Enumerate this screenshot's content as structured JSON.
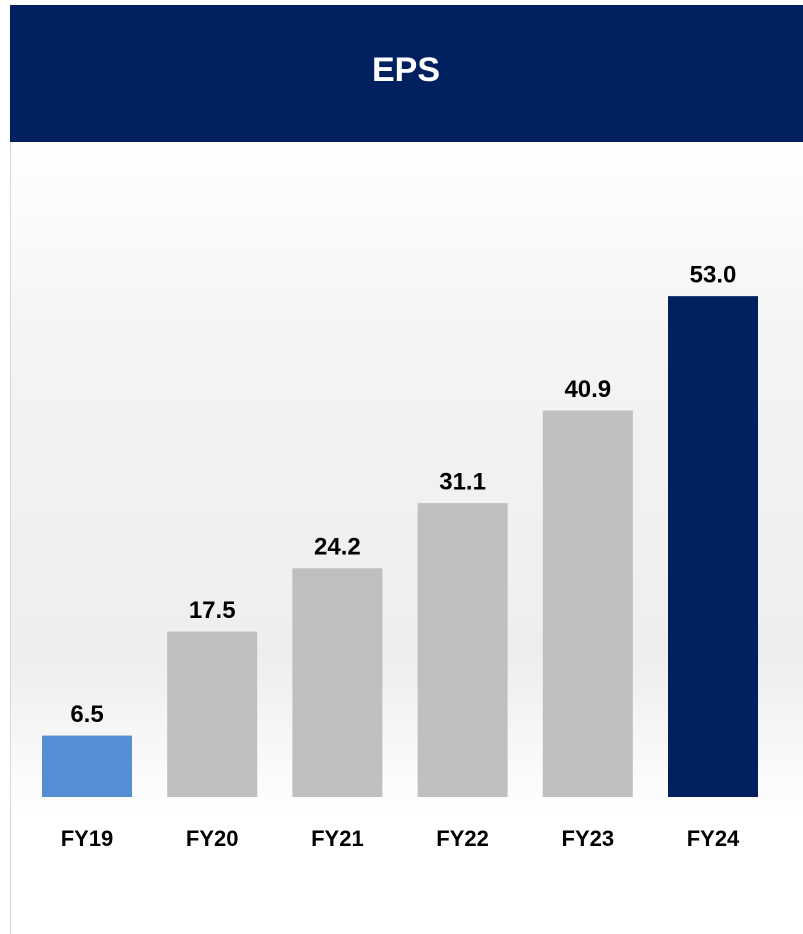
{
  "chart_data": {
    "type": "bar",
    "title": "EPS",
    "categories": [
      "FY19",
      "FY20",
      "FY21",
      "FY22",
      "FY23",
      "FY24"
    ],
    "values": [
      6.5,
      17.5,
      24.2,
      31.1,
      40.9,
      53
    ],
    "value_labels": [
      "6.5",
      "17.5",
      "24.2",
      "31.1",
      "40.9",
      "53.0"
    ],
    "colors": [
      "#558ed5",
      "#bfbfbf",
      "#bfbfbf",
      "#bfbfbf",
      "#bfbfbf",
      "#002060"
    ]
  }
}
